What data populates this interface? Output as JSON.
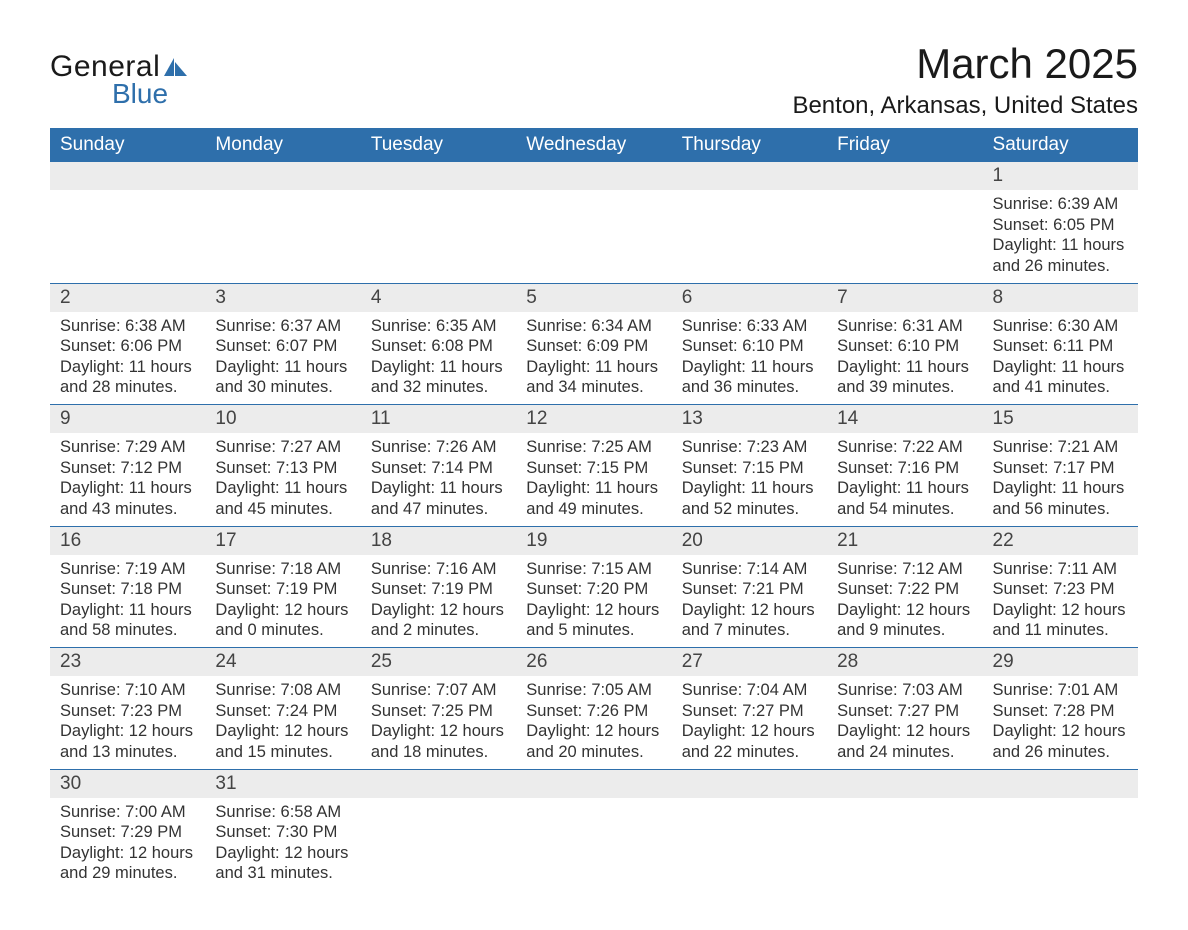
{
  "brand": {
    "general": "General",
    "blue": "Blue"
  },
  "title": "March 2025",
  "location": "Benton, Arkansas, United States",
  "colors": {
    "header_bg": "#2e6fab",
    "header_text": "#ffffff",
    "daynum_bg": "#ececec",
    "text": "#333333",
    "rule": "#2e6fab"
  },
  "weekdays": [
    "Sunday",
    "Monday",
    "Tuesday",
    "Wednesday",
    "Thursday",
    "Friday",
    "Saturday"
  ],
  "weeks": [
    [
      null,
      null,
      null,
      null,
      null,
      null,
      {
        "n": "1",
        "sr": "Sunrise: 6:39 AM",
        "ss": "Sunset: 6:05 PM",
        "d1": "Daylight: 11 hours",
        "d2": "and 26 minutes."
      }
    ],
    [
      {
        "n": "2",
        "sr": "Sunrise: 6:38 AM",
        "ss": "Sunset: 6:06 PM",
        "d1": "Daylight: 11 hours",
        "d2": "and 28 minutes."
      },
      {
        "n": "3",
        "sr": "Sunrise: 6:37 AM",
        "ss": "Sunset: 6:07 PM",
        "d1": "Daylight: 11 hours",
        "d2": "and 30 minutes."
      },
      {
        "n": "4",
        "sr": "Sunrise: 6:35 AM",
        "ss": "Sunset: 6:08 PM",
        "d1": "Daylight: 11 hours",
        "d2": "and 32 minutes."
      },
      {
        "n": "5",
        "sr": "Sunrise: 6:34 AM",
        "ss": "Sunset: 6:09 PM",
        "d1": "Daylight: 11 hours",
        "d2": "and 34 minutes."
      },
      {
        "n": "6",
        "sr": "Sunrise: 6:33 AM",
        "ss": "Sunset: 6:10 PM",
        "d1": "Daylight: 11 hours",
        "d2": "and 36 minutes."
      },
      {
        "n": "7",
        "sr": "Sunrise: 6:31 AM",
        "ss": "Sunset: 6:10 PM",
        "d1": "Daylight: 11 hours",
        "d2": "and 39 minutes."
      },
      {
        "n": "8",
        "sr": "Sunrise: 6:30 AM",
        "ss": "Sunset: 6:11 PM",
        "d1": "Daylight: 11 hours",
        "d2": "and 41 minutes."
      }
    ],
    [
      {
        "n": "9",
        "sr": "Sunrise: 7:29 AM",
        "ss": "Sunset: 7:12 PM",
        "d1": "Daylight: 11 hours",
        "d2": "and 43 minutes."
      },
      {
        "n": "10",
        "sr": "Sunrise: 7:27 AM",
        "ss": "Sunset: 7:13 PM",
        "d1": "Daylight: 11 hours",
        "d2": "and 45 minutes."
      },
      {
        "n": "11",
        "sr": "Sunrise: 7:26 AM",
        "ss": "Sunset: 7:14 PM",
        "d1": "Daylight: 11 hours",
        "d2": "and 47 minutes."
      },
      {
        "n": "12",
        "sr": "Sunrise: 7:25 AM",
        "ss": "Sunset: 7:15 PM",
        "d1": "Daylight: 11 hours",
        "d2": "and 49 minutes."
      },
      {
        "n": "13",
        "sr": "Sunrise: 7:23 AM",
        "ss": "Sunset: 7:15 PM",
        "d1": "Daylight: 11 hours",
        "d2": "and 52 minutes."
      },
      {
        "n": "14",
        "sr": "Sunrise: 7:22 AM",
        "ss": "Sunset: 7:16 PM",
        "d1": "Daylight: 11 hours",
        "d2": "and 54 minutes."
      },
      {
        "n": "15",
        "sr": "Sunrise: 7:21 AM",
        "ss": "Sunset: 7:17 PM",
        "d1": "Daylight: 11 hours",
        "d2": "and 56 minutes."
      }
    ],
    [
      {
        "n": "16",
        "sr": "Sunrise: 7:19 AM",
        "ss": "Sunset: 7:18 PM",
        "d1": "Daylight: 11 hours",
        "d2": "and 58 minutes."
      },
      {
        "n": "17",
        "sr": "Sunrise: 7:18 AM",
        "ss": "Sunset: 7:19 PM",
        "d1": "Daylight: 12 hours",
        "d2": "and 0 minutes."
      },
      {
        "n": "18",
        "sr": "Sunrise: 7:16 AM",
        "ss": "Sunset: 7:19 PM",
        "d1": "Daylight: 12 hours",
        "d2": "and 2 minutes."
      },
      {
        "n": "19",
        "sr": "Sunrise: 7:15 AM",
        "ss": "Sunset: 7:20 PM",
        "d1": "Daylight: 12 hours",
        "d2": "and 5 minutes."
      },
      {
        "n": "20",
        "sr": "Sunrise: 7:14 AM",
        "ss": "Sunset: 7:21 PM",
        "d1": "Daylight: 12 hours",
        "d2": "and 7 minutes."
      },
      {
        "n": "21",
        "sr": "Sunrise: 7:12 AM",
        "ss": "Sunset: 7:22 PM",
        "d1": "Daylight: 12 hours",
        "d2": "and 9 minutes."
      },
      {
        "n": "22",
        "sr": "Sunrise: 7:11 AM",
        "ss": "Sunset: 7:23 PM",
        "d1": "Daylight: 12 hours",
        "d2": "and 11 minutes."
      }
    ],
    [
      {
        "n": "23",
        "sr": "Sunrise: 7:10 AM",
        "ss": "Sunset: 7:23 PM",
        "d1": "Daylight: 12 hours",
        "d2": "and 13 minutes."
      },
      {
        "n": "24",
        "sr": "Sunrise: 7:08 AM",
        "ss": "Sunset: 7:24 PM",
        "d1": "Daylight: 12 hours",
        "d2": "and 15 minutes."
      },
      {
        "n": "25",
        "sr": "Sunrise: 7:07 AM",
        "ss": "Sunset: 7:25 PM",
        "d1": "Daylight: 12 hours",
        "d2": "and 18 minutes."
      },
      {
        "n": "26",
        "sr": "Sunrise: 7:05 AM",
        "ss": "Sunset: 7:26 PM",
        "d1": "Daylight: 12 hours",
        "d2": "and 20 minutes."
      },
      {
        "n": "27",
        "sr": "Sunrise: 7:04 AM",
        "ss": "Sunset: 7:27 PM",
        "d1": "Daylight: 12 hours",
        "d2": "and 22 minutes."
      },
      {
        "n": "28",
        "sr": "Sunrise: 7:03 AM",
        "ss": "Sunset: 7:27 PM",
        "d1": "Daylight: 12 hours",
        "d2": "and 24 minutes."
      },
      {
        "n": "29",
        "sr": "Sunrise: 7:01 AM",
        "ss": "Sunset: 7:28 PM",
        "d1": "Daylight: 12 hours",
        "d2": "and 26 minutes."
      }
    ],
    [
      {
        "n": "30",
        "sr": "Sunrise: 7:00 AM",
        "ss": "Sunset: 7:29 PM",
        "d1": "Daylight: 12 hours",
        "d2": "and 29 minutes."
      },
      {
        "n": "31",
        "sr": "Sunrise: 6:58 AM",
        "ss": "Sunset: 7:30 PM",
        "d1": "Daylight: 12 hours",
        "d2": "and 31 minutes."
      },
      null,
      null,
      null,
      null,
      null
    ]
  ]
}
